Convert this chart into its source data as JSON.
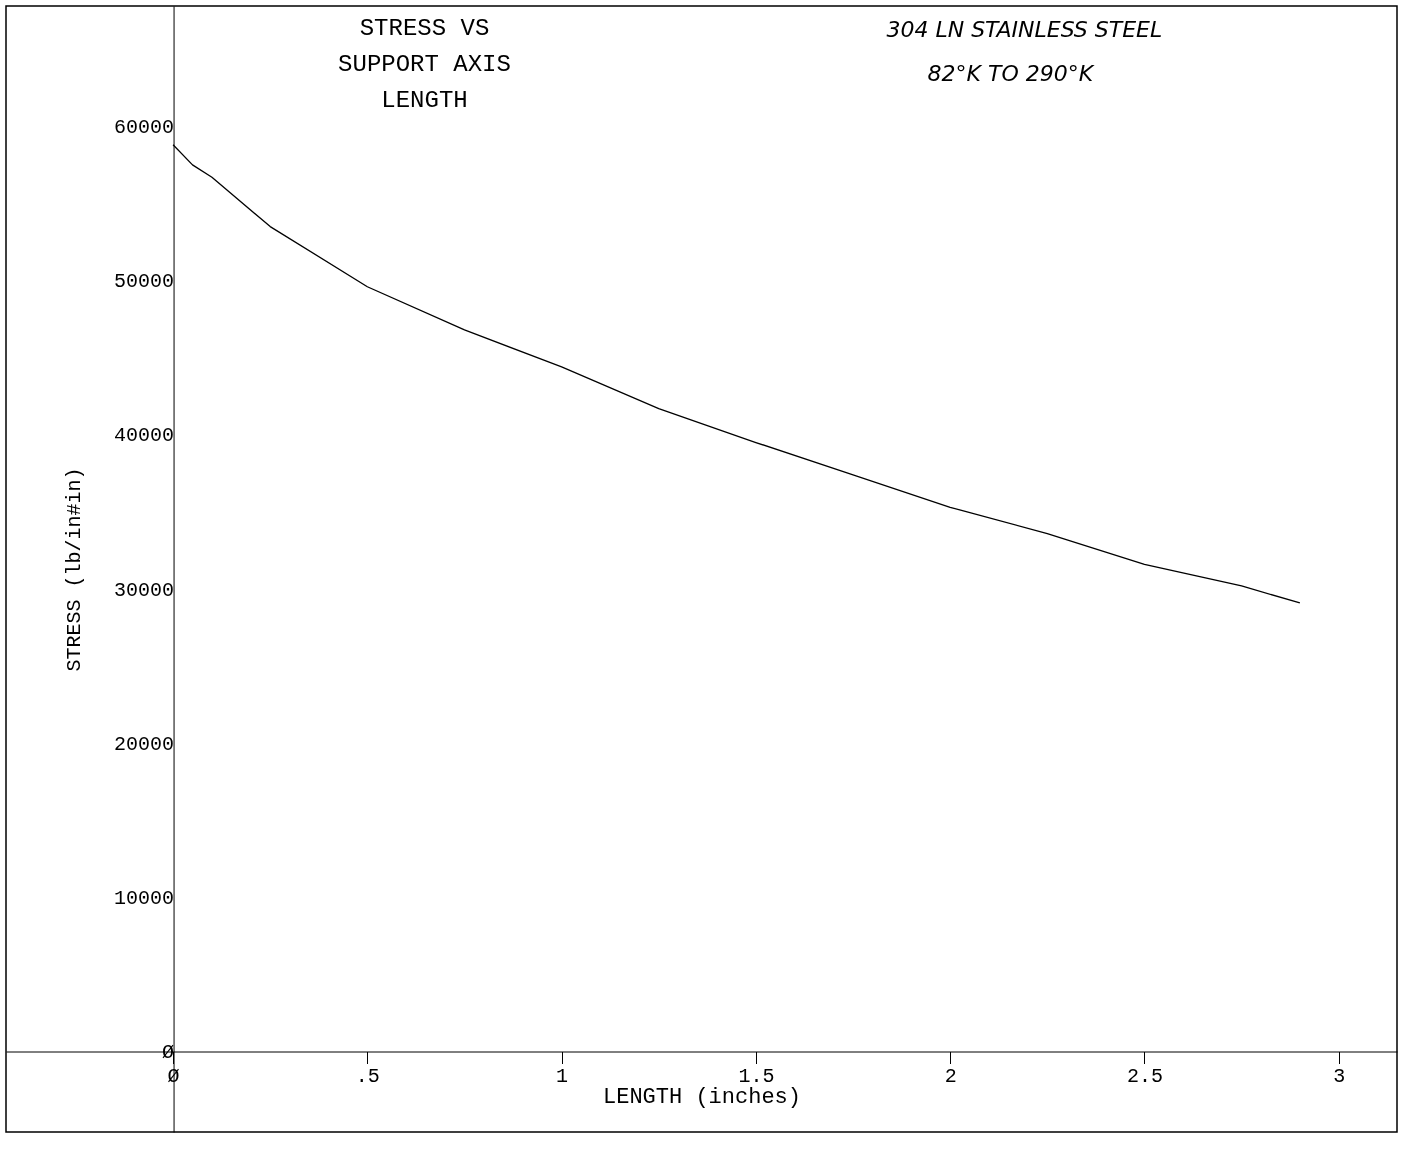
{
  "chart_data": {
    "type": "line",
    "title": "STRESS VS\nSUPPORT AXIS\nLENGTH",
    "xlabel": "LENGTH (inches)",
    "ylabel": "STRESS (lb/in#in)",
    "annotations": [
      "304 LN STAINLESS STEEL",
      "82°K TO 290°K"
    ],
    "x": [
      0,
      0.05,
      0.1,
      0.25,
      0.5,
      0.75,
      1,
      1.25,
      1.5,
      1.75,
      2,
      2.25,
      2.5,
      2.75,
      2.9
    ],
    "series": [
      {
        "color": "#000000",
        "values": [
          58800,
          57500,
          56700,
          53500,
          49600,
          46800,
          44400,
          41700,
          39500,
          37400,
          35300,
          33600,
          31600,
          30200,
          29100
        ]
      }
    ],
    "xlim": [
      -0.43,
      3.15
    ],
    "ylim": [
      -5200,
      67800
    ],
    "xticks": [
      {
        "value": 0,
        "label": "Ø"
      },
      {
        "value": 0.5,
        "label": ".5"
      },
      1,
      1.5,
      2,
      2.5,
      3
    ],
    "yticks": [
      {
        "value": 0,
        "label": "Ø"
      },
      10000,
      20000,
      30000,
      40000,
      50000,
      60000
    ],
    "grid": false,
    "marker": "none",
    "line_style": "solid"
  }
}
